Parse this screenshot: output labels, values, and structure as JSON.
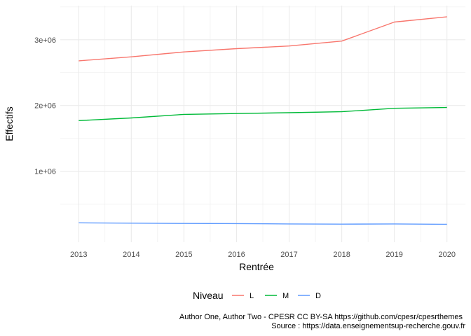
{
  "chart_data": {
    "type": "line",
    "xlabel": "Rentrée",
    "ylabel": "Effectifs",
    "x": [
      2013,
      2014,
      2015,
      2016,
      2017,
      2018,
      2019,
      2020
    ],
    "x_tick_labels": [
      "2013",
      "2014",
      "2015",
      "2016",
      "2017",
      "2018",
      "2019",
      "2020"
    ],
    "y_ticks": [
      1000000,
      2000000,
      3000000
    ],
    "y_tick_labels": [
      "1e+06",
      "2e+06",
      "3e+06"
    ],
    "ylim": [
      -80000,
      3520000
    ],
    "grid": true,
    "legend": {
      "title": "Niveau",
      "position": "bottom"
    },
    "series": [
      {
        "name": "L",
        "color": "#F8766D",
        "values": [
          2680000,
          2740000,
          2815000,
          2865000,
          2905000,
          2980000,
          3270000,
          3350000
        ]
      },
      {
        "name": "M",
        "color": "#00BA38",
        "values": [
          1770000,
          1810000,
          1865000,
          1878000,
          1890000,
          1905000,
          1958000,
          1970000
        ]
      },
      {
        "name": "D",
        "color": "#619CFF",
        "values": [
          215000,
          210000,
          205000,
          203000,
          198000,
          195000,
          198000,
          193000
        ]
      }
    ]
  },
  "caption": {
    "line1": "Author One, Author Two - CPESR CC BY-SA https://github.com/cpesr/cpesrthemes",
    "line2": "Source : https://data.enseignementsup-recherche.gouv.fr"
  }
}
